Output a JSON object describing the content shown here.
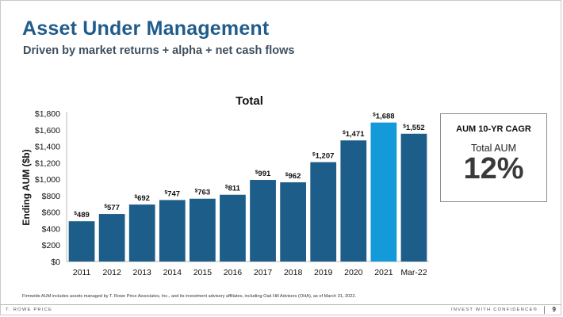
{
  "header": {
    "title": "Asset Under Management",
    "subtitle": "Driven by market returns + alpha + net cash flows"
  },
  "chart_data": {
    "type": "bar",
    "title": "Total",
    "ylabel": "Ending AUM ($b)",
    "xlabel": "",
    "categories": [
      "2011",
      "2012",
      "2013",
      "2014",
      "2015",
      "2016",
      "2017",
      "2018",
      "2019",
      "2020",
      "2021",
      "Mar-22"
    ],
    "values": [
      489,
      577,
      692,
      747,
      763,
      811,
      991,
      962,
      1207,
      1471,
      1688,
      1552
    ],
    "value_labels": [
      "$489",
      "$577",
      "$692",
      "$747",
      "$763",
      "$811",
      "$991",
      "$962",
      "$1,207",
      "$1,471",
      "$1,688",
      "$1,552"
    ],
    "ylim": [
      0,
      1800
    ],
    "yticks": [
      0,
      200,
      400,
      600,
      800,
      1000,
      1200,
      1400,
      1600,
      1800
    ],
    "ytick_labels": [
      "$0",
      "$200",
      "$400",
      "$600",
      "$800",
      "$1,000",
      "$1,200",
      "$1,400",
      "$1,600",
      "$1,800"
    ],
    "grid": false,
    "colors": {
      "bar": "#1c5d8a",
      "highlight": "#149ad9",
      "highlight_category": "2021"
    }
  },
  "callout": {
    "title": "AUM 10-YR CAGR",
    "label": "Total AUM",
    "value": "12%"
  },
  "footnote": "Firmwide AUM includes assets managed by T. Rowe Price Associates, Inc., and its investment advisory affiliates,  including Oak Hill Advisors (OHA), as of March 31, 2022.",
  "footer": {
    "brand": "T. ROWE PRICE",
    "tagline": "INVEST WITH CONFIDENCE®",
    "page": "9"
  }
}
